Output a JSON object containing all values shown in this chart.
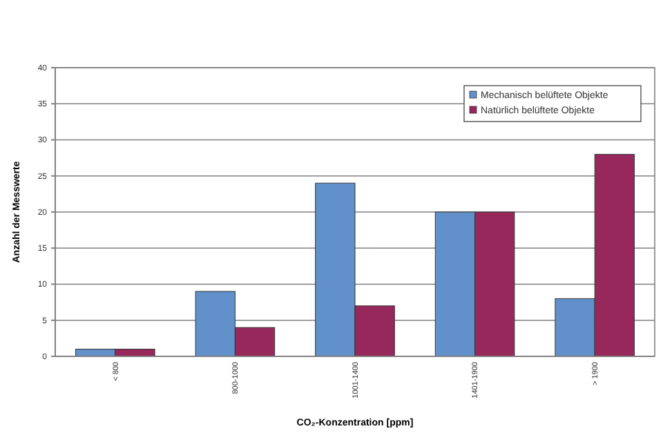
{
  "chart_data": {
    "type": "bar",
    "xlabel": "CO₂-Konzentration [ppm]",
    "ylabel": "Anzahl der Messwerte",
    "categories": [
      "< 800",
      "800-1000",
      "1001-1400",
      "1401-1900",
      "> 1900"
    ],
    "series": [
      {
        "name": "Mechanisch belüftete Objekte",
        "color": "#6190cb",
        "values": [
          1,
          9,
          24,
          20,
          8
        ]
      },
      {
        "name": "Natürlich belüftete Objekte",
        "color": "#97285c",
        "values": [
          1,
          4,
          7,
          20,
          28
        ]
      }
    ],
    "ylim": [
      0,
      40
    ],
    "yticks": [
      0,
      5,
      10,
      15,
      20,
      25,
      30,
      35,
      40
    ],
    "grid": "y",
    "legend": "top right"
  }
}
